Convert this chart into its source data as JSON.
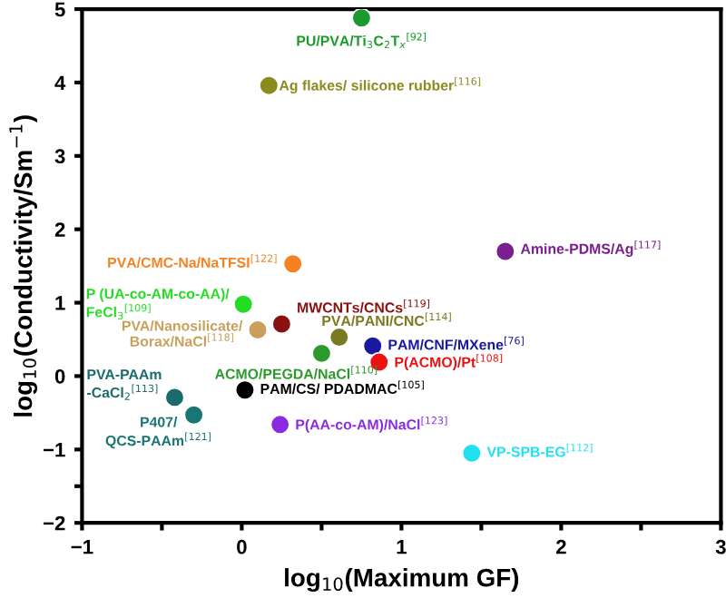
{
  "chart_data": {
    "type": "scatter",
    "xlabel": "log$_{10}$(Maximum GF)",
    "ylabel": "log$_{10}$(Conductivity/Sm$^{−1}$)",
    "xlim": [
      -1,
      3
    ],
    "ylim": [
      -2,
      5
    ],
    "xticks": [
      -1,
      {
        "value": -0.5,
        "label": null
      },
      0,
      {
        "value": 0.5,
        "label": null
      },
      1,
      {
        "value": 1.5,
        "label": null
      },
      2,
      {
        "value": 2.5,
        "label": null
      },
      3
    ],
    "yticks": [
      -2,
      {
        "value": -1.5,
        "label": null
      },
      -1,
      0,
      1,
      2,
      3,
      4,
      5
    ],
    "grid": false,
    "legend": false,
    "marker": "circle",
    "series": [
      {
        "name": "PU/PVA/Ti$_{3}$C$_{2}$T$_{x}$$^{[92]}$",
        "color": "#1a9a2a",
        "x": [
          0.75
        ],
        "values": [
          4.88
        ]
      },
      {
        "name": "Ag flakes/ silicone rubber$^{[116]}$",
        "color": "#8b8a1e",
        "x": [
          0.17
        ],
        "values": [
          3.96
        ]
      },
      {
        "name": "Amine-PDMS/Ag$^{[117]}$",
        "color": "#7a1f8f",
        "x": [
          1.65
        ],
        "values": [
          1.7
        ]
      },
      {
        "name": "PVA/CMC-Na/NaTFSI$^{[122]}$",
        "color": "#f58220",
        "x": [
          0.32
        ],
        "values": [
          1.53
        ]
      },
      {
        "name": "P (UA-co-AM-co-AA)/\nFeCl$_{3}$$^{[109]}$",
        "color": "#22dd22",
        "x": [
          0.01
        ],
        "values": [
          0.98
        ]
      },
      {
        "name": "MWCNTs/CNCs$^{[119]}$",
        "color": "#8b1010",
        "x": [
          0.25
        ],
        "values": [
          0.71
        ]
      },
      {
        "name": "PVA/Nanosilicate/\nBorax/NaCl$^{[118]}$",
        "color": "#c8a05a",
        "x": [
          0.1
        ],
        "values": [
          0.63
        ]
      },
      {
        "name": "PVA/PANI/CNC$^{[114]}$",
        "color": "#7a7a20",
        "x": [
          0.61
        ],
        "values": [
          0.53
        ]
      },
      {
        "name": "ACMO/PEGDA/NaCl$^{[110]}$",
        "color": "#2a9a2a",
        "x": [
          0.5
        ],
        "values": [
          0.31
        ]
      },
      {
        "name": "PAM/CNF/MXene$^{[76]}$",
        "color": "#1a1aa0",
        "x": [
          0.82
        ],
        "values": [
          0.41
        ]
      },
      {
        "name": "P(ACMO)/Pt$^{[108]}$",
        "color": "#ee1111",
        "x": [
          0.86
        ],
        "values": [
          0.19
        ]
      },
      {
        "name": "PAM/CS/ PDADMAC$^{[105]}$",
        "color": "#000000",
        "x": [
          0.02
        ],
        "values": [
          -0.19
        ]
      },
      {
        "name": "PVA-PAAm\n-CaCl$_{2}$$^{[113]}$",
        "color": "#1a6b6b",
        "x": [
          -0.42
        ],
        "values": [
          -0.29
        ]
      },
      {
        "name": "P407/\nQCS-PAAm$^{[121]}$",
        "color": "#1a7575",
        "x": [
          -0.3
        ],
        "values": [
          -0.53
        ]
      },
      {
        "name": "P(AA-co-AM)/NaCl$^{[123]}$",
        "color": "#8a2be2",
        "x": [
          0.24
        ],
        "values": [
          -0.66
        ]
      },
      {
        "name": "VP-SPB-EG$^{[112]}$",
        "color": "#22e0f0",
        "x": [
          1.44
        ],
        "values": [
          -1.05
        ]
      }
    ]
  }
}
